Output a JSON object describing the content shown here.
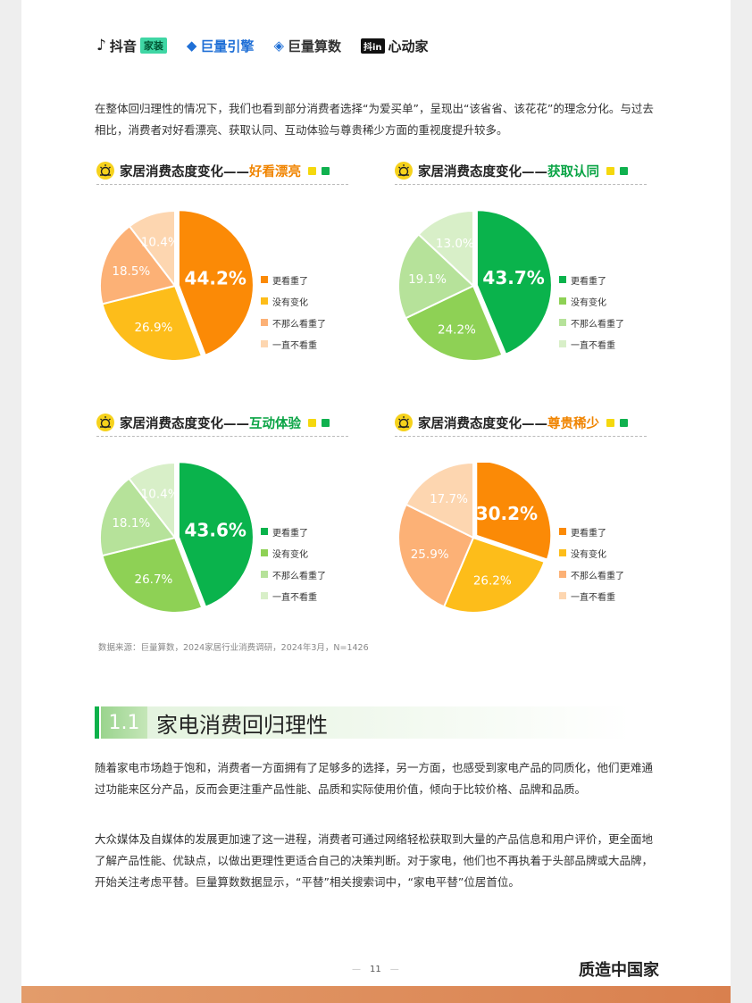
{
  "header": {
    "logos": [
      {
        "name": "抖音",
        "tag": "家装"
      },
      {
        "name": "巨量引擎"
      },
      {
        "name": "巨量算数"
      },
      {
        "name_box": "抖in",
        "name": "心动家"
      }
    ]
  },
  "intro": "在整体回归理性的情况下，我们也看到部分消费者选择“为爱买单”，呈现出“该省省、该花花”的理念分化。与过去相比，消费者对好看漂亮、获取认同、互动体验与尊贵稀少方面的重视度提升较多。",
  "legend_labels": [
    "更看重了",
    "没有变化",
    "不那么看重了",
    "一直不看重"
  ],
  "charts": [
    {
      "title_prefix": "家居消费态度变化——",
      "highlight": "好看漂亮",
      "highlight_color": "#f08400",
      "colors": [
        "#fb8a06",
        "#fdbd1a",
        "#fcb176",
        "#fdd6b0"
      ],
      "values": [
        44.2,
        26.9,
        18.5,
        10.4
      ],
      "labels": [
        "44.2%",
        "26.9%",
        "18.5%",
        "10.4%"
      ]
    },
    {
      "title_prefix": "家居消费态度变化——",
      "highlight": "获取认同",
      "highlight_color": "#0aa445",
      "colors": [
        "#0ab34c",
        "#8ed155",
        "#b6e29a",
        "#d8efc8"
      ],
      "values": [
        43.7,
        24.2,
        19.1,
        13.0
      ],
      "labels": [
        "43.7%",
        "24.2%",
        "19.1%",
        "13.0%"
      ]
    },
    {
      "title_prefix": "家居消费态度变化——",
      "highlight": "互动体验",
      "highlight_color": "#0aa445",
      "colors": [
        "#0ab34c",
        "#8ed155",
        "#b6e29a",
        "#d8efc8"
      ],
      "values": [
        43.6,
        26.7,
        18.1,
        10.4
      ],
      "labels": [
        "43.6%",
        "26.7%",
        "18.1%",
        "10.4%"
      ]
    },
    {
      "title_prefix": "家居消费态度变化——",
      "highlight": "尊贵稀少",
      "highlight_color": "#f08400",
      "colors": [
        "#fb8a06",
        "#fdbd1a",
        "#fcb176",
        "#fdd6b0"
      ],
      "values": [
        30.2,
        26.2,
        25.9,
        17.7
      ],
      "labels": [
        "30.2%",
        "26.2%",
        "25.9%",
        "17.7%"
      ]
    }
  ],
  "source": "数据来源：巨量算数，2024家居行业消费调研，2024年3月，N=1426",
  "section": {
    "num": "1.1",
    "title": "家电消费回归理性"
  },
  "para1": "随着家电市场趋于饱和，消费者一方面拥有了足够多的选择，另一方面，也感受到家电产品的同质化，他们更难通过功能来区分产品，反而会更注重产品性能、品质和实际使用价值，倾向于比较价格、品牌和品质。",
  "para2": "大众媒体及自媒体的发展更加速了这一进程，消费者可通过网络轻松获取到大量的产品信息和用户评价，更全面地了解产品性能、优缺点，以做出更理性更适合自己的决策判断。对于家电，他们也不再执着于头部品牌或大品牌，开始关注考虑平替。巨量算数数据显示，“平替”相关搜索词中，“家电平替”位居首位。",
  "footer": {
    "page": "11",
    "brand": "质造中国家"
  },
  "colors": {
    "accent_green": "#0db14b",
    "accent_orange": "#f08400",
    "bottom_bar": "#d9804e"
  }
}
